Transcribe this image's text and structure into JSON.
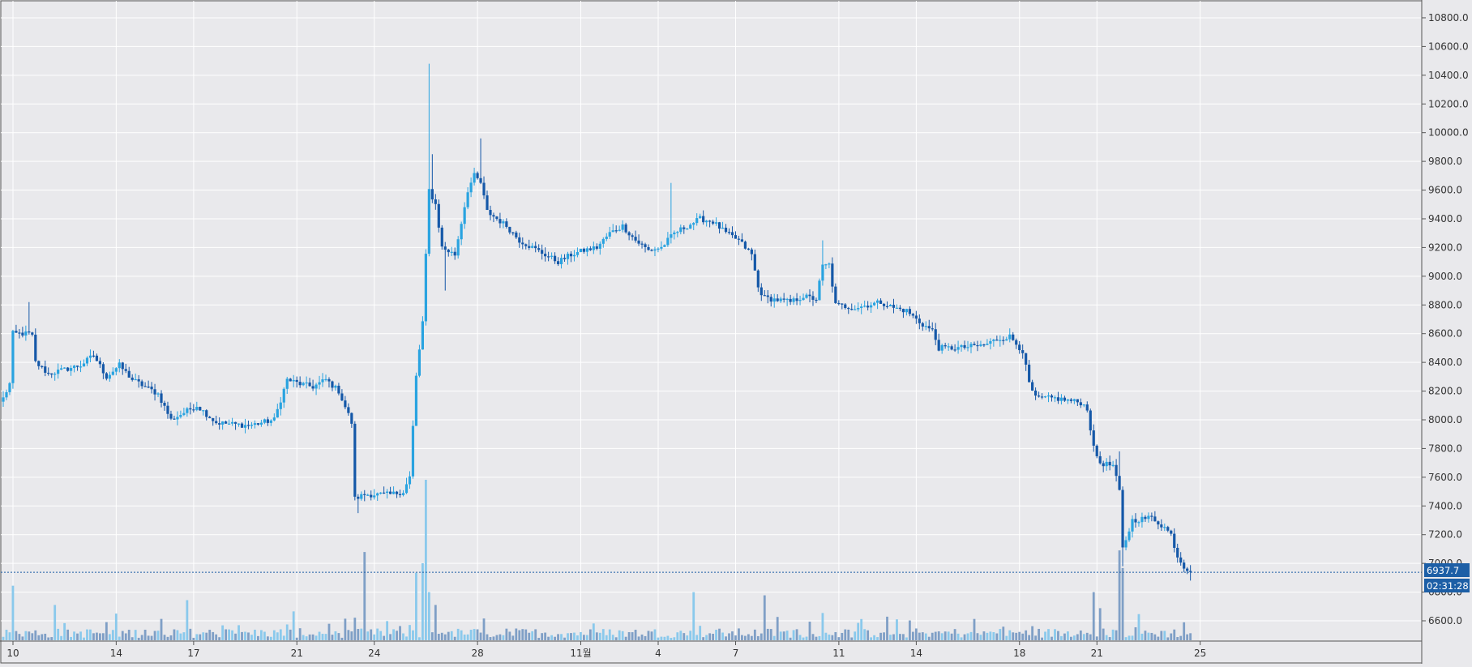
{
  "chart_data": {
    "type": "candlestick",
    "title": "",
    "xlabel": "",
    "ylabel": "",
    "ylim": [
      6440,
      10920
    ],
    "y_ticks": [
      6600,
      6800,
      7000,
      7200,
      7400,
      7600,
      7800,
      8000,
      8200,
      8400,
      8600,
      8800,
      9000,
      9200,
      9400,
      9600,
      9800,
      10000,
      10200,
      10400,
      10600,
      10800
    ],
    "y_tick_labels": [
      "6600.0",
      "6800.0",
      "7000.0",
      "7200.0",
      "7400.0",
      "7600.0",
      "7800.0",
      "8000.0",
      "8200.0",
      "8400.0",
      "8600.0",
      "8800.0",
      "9000.0",
      "9200.0",
      "9400.0",
      "9600.0",
      "9800.0",
      "10000.0",
      "10200.0",
      "10400.0",
      "10600.0",
      "10800.0"
    ],
    "x_labels": [
      {
        "label": "10",
        "bar": 0
      },
      {
        "label": "14",
        "bar": 32
      },
      {
        "label": "17",
        "bar": 56
      },
      {
        "label": "21",
        "bar": 88
      },
      {
        "label": "24",
        "bar": 112
      },
      {
        "label": "28",
        "bar": 144
      },
      {
        "label": "11월",
        "bar": 176
      },
      {
        "label": "4",
        "bar": 200
      },
      {
        "label": "7",
        "bar": 224
      },
      {
        "label": "11",
        "bar": 256
      },
      {
        "label": "14",
        "bar": 280
      },
      {
        "label": "18",
        "bar": 312
      },
      {
        "label": "21",
        "bar": 336
      },
      {
        "label": "25",
        "bar": 368
      }
    ],
    "bars_per_day": 8,
    "keypoints": [
      [
        0,
        8150
      ],
      [
        2,
        8250
      ],
      [
        3,
        8600
      ],
      [
        8,
        8600
      ],
      [
        9,
        8580
      ],
      [
        10,
        8400
      ],
      [
        14,
        8320
      ],
      [
        24,
        8380
      ],
      [
        28,
        8450
      ],
      [
        32,
        8300
      ],
      [
        36,
        8380
      ],
      [
        40,
        8280
      ],
      [
        48,
        8180
      ],
      [
        52,
        8000
      ],
      [
        56,
        8050
      ],
      [
        60,
        8100
      ],
      [
        66,
        7980
      ],
      [
        76,
        7960
      ],
      [
        84,
        8000
      ],
      [
        88,
        8280
      ],
      [
        92,
        8250
      ],
      [
        96,
        8230
      ],
      [
        100,
        8280
      ],
      [
        104,
        8200
      ],
      [
        108,
        7980
      ],
      [
        109,
        7450
      ],
      [
        112,
        7480
      ],
      [
        120,
        7480
      ],
      [
        124,
        7500
      ],
      [
        126,
        7600
      ],
      [
        128,
        8300
      ],
      [
        130,
        8680
      ],
      [
        132,
        9600
      ],
      [
        134,
        9500
      ],
      [
        136,
        9200
      ],
      [
        140,
        9150
      ],
      [
        144,
        9600
      ],
      [
        146,
        9700
      ],
      [
        148,
        9650
      ],
      [
        150,
        9450
      ],
      [
        156,
        9350
      ],
      [
        160,
        9250
      ],
      [
        164,
        9200
      ],
      [
        168,
        9150
      ],
      [
        172,
        9100
      ],
      [
        176,
        9150
      ],
      [
        180,
        9180
      ],
      [
        184,
        9200
      ],
      [
        188,
        9300
      ],
      [
        192,
        9350
      ],
      [
        196,
        9250
      ],
      [
        200,
        9180
      ],
      [
        204,
        9200
      ],
      [
        208,
        9300
      ],
      [
        212,
        9350
      ],
      [
        216,
        9400
      ],
      [
        220,
        9380
      ],
      [
        224,
        9300
      ],
      [
        228,
        9250
      ],
      [
        232,
        9150
      ],
      [
        234,
        8920
      ],
      [
        236,
        8850
      ],
      [
        244,
        8820
      ],
      [
        248,
        8860
      ],
      [
        252,
        8840
      ],
      [
        254,
        9070
      ],
      [
        256,
        9080
      ],
      [
        258,
        8800
      ],
      [
        264,
        8780
      ],
      [
        272,
        8820
      ],
      [
        276,
        8780
      ],
      [
        280,
        8760
      ],
      [
        284,
        8680
      ],
      [
        288,
        8620
      ],
      [
        290,
        8500
      ],
      [
        296,
        8500
      ],
      [
        304,
        8520
      ],
      [
        308,
        8560
      ],
      [
        312,
        8580
      ],
      [
        316,
        8480
      ],
      [
        318,
        8250
      ],
      [
        320,
        8150
      ],
      [
        326,
        8150
      ],
      [
        334,
        8120
      ],
      [
        336,
        8080
      ],
      [
        338,
        7800
      ],
      [
        340,
        7700
      ],
      [
        344,
        7680
      ],
      [
        346,
        7500
      ],
      [
        347,
        7100
      ],
      [
        350,
        7300
      ],
      [
        356,
        7320
      ],
      [
        360,
        7250
      ],
      [
        362,
        7200
      ],
      [
        364,
        7050
      ],
      [
        366,
        6980
      ],
      [
        368,
        6940
      ]
    ],
    "spikes": [
      {
        "bar": 8,
        "high": 8820
      },
      {
        "bar": 132,
        "high": 10480
      },
      {
        "bar": 133,
        "high": 9850
      },
      {
        "bar": 137,
        "low": 8900
      },
      {
        "bar": 148,
        "high": 9960
      },
      {
        "bar": 207,
        "high": 9650
      },
      {
        "bar": 254,
        "high": 9250
      },
      {
        "bar": 347,
        "low": 6980
      },
      {
        "bar": 346,
        "high": 7780
      },
      {
        "bar": 110,
        "low": 7350
      },
      {
        "bar": 368,
        "low": 6880
      }
    ],
    "volume_spikes": [
      {
        "bar": 3,
        "v": 0.34
      },
      {
        "bar": 16,
        "v": 0.22
      },
      {
        "bar": 57,
        "v": 0.25
      },
      {
        "bar": 90,
        "v": 0.18
      },
      {
        "bar": 112,
        "v": 0.55
      },
      {
        "bar": 128,
        "v": 0.42
      },
      {
        "bar": 130,
        "v": 0.48
      },
      {
        "bar": 131,
        "v": 1.0
      },
      {
        "bar": 132,
        "v": 0.3
      },
      {
        "bar": 134,
        "v": 0.22
      },
      {
        "bar": 236,
        "v": 0.28
      },
      {
        "bar": 254,
        "v": 0.17
      },
      {
        "bar": 214,
        "v": 0.3
      },
      {
        "bar": 338,
        "v": 0.3
      },
      {
        "bar": 340,
        "v": 0.2
      },
      {
        "bar": 346,
        "v": 0.56
      },
      {
        "bar": 347,
        "v": 0.45
      }
    ],
    "last_price": 6937.7,
    "last_price_label": "6937.7",
    "countdown_label": "02:31:28",
    "colors": {
      "up": "#29a3e0",
      "down": "#1558a8",
      "wick": "#3a6ea5",
      "volume_up": "#8ac9ec",
      "volume_down": "#7f9fc6",
      "grid": "#ffffff",
      "background": "#e9e9ec",
      "price_tag": "#1d5fa6"
    },
    "grid": true
  }
}
